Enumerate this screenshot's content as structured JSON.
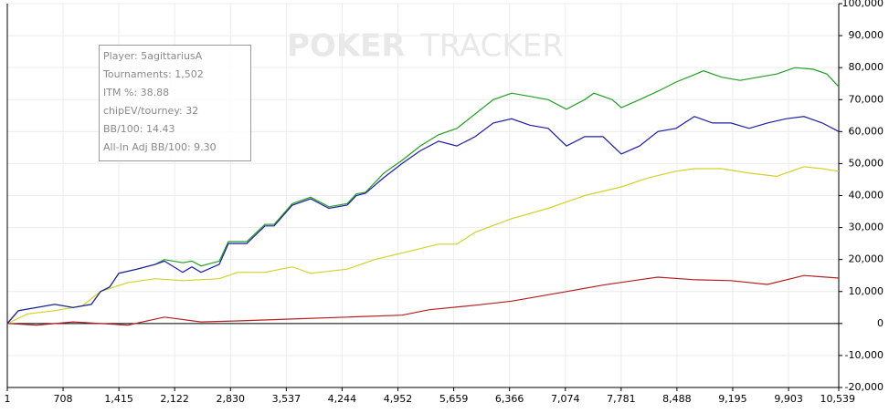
{
  "chart_data": {
    "type": "line",
    "watermark": [
      "POKER",
      "TRACKER"
    ],
    "annotations": [
      "Player: 5agittariusA",
      "Tournaments: 1,502",
      "ITM %: 38.88",
      "chipEV/tourney: 32",
      "BB/100: 14.43",
      "All-In Adj BB/100: 9.30"
    ],
    "xlim": [
      1,
      10539
    ],
    "ylim": [
      -20000,
      100000
    ],
    "xticks": [
      1,
      708,
      {
        "value": 1415,
        "label": "1,415"
      },
      {
        "value": 2122,
        "label": "2,122"
      },
      {
        "value": 2830,
        "label": "2,830"
      },
      {
        "value": 3537,
        "label": "3,537"
      },
      {
        "value": 4244,
        "label": "4,244"
      },
      {
        "value": 4952,
        "label": "4,952"
      },
      {
        "value": 5659,
        "label": "5,659"
      },
      {
        "value": 6366,
        "label": "6,366"
      },
      {
        "value": 7074,
        "label": "7,074"
      },
      {
        "value": 7781,
        "label": "7,781"
      },
      {
        "value": 8488,
        "label": "8,488"
      },
      {
        "value": 9195,
        "label": "9,195"
      },
      {
        "value": 9903,
        "label": "9,903"
      },
      {
        "value": 10539,
        "label": "10,539"
      }
    ],
    "yticks": [
      {
        "value": 100000,
        "label": "100,000"
      },
      {
        "value": 90000,
        "label": "90,000"
      },
      {
        "value": 80000,
        "label": "80,000"
      },
      {
        "value": 70000,
        "label": "70,000"
      },
      {
        "value": 60000,
        "label": "60,000"
      },
      {
        "value": 50000,
        "label": "50,000"
      },
      {
        "value": 40000,
        "label": "40,000"
      },
      {
        "value": 30000,
        "label": "30,000"
      },
      {
        "value": 20000,
        "label": "20,000"
      },
      {
        "value": 10000,
        "label": "10,000"
      },
      0,
      {
        "value": -10000,
        "label": "-10,000"
      },
      {
        "value": -20000,
        "label": "-20,000"
      }
    ],
    "grid": true,
    "series": [
      {
        "color": "#d4d12a",
        "x": [
          1,
          256,
          603,
          951,
          1182,
          1530,
          1877,
          2224,
          2688,
          2919,
          3267,
          3614,
          3846,
          4309,
          4656,
          5004,
          5467,
          5698,
          5930,
          6393,
          6856,
          7319,
          7783,
          8130,
          8477,
          8709,
          9056,
          9403,
          9751,
          10098,
          10330,
          10539
        ],
        "values": [
          0,
          3000,
          4000,
          5500,
          10000,
          12800,
          14000,
          13400,
          14000,
          16000,
          16000,
          17700,
          15700,
          17000,
          20000,
          22000,
          24800,
          24800,
          28500,
          32800,
          36000,
          40000,
          42700,
          45600,
          47600,
          48400,
          48400,
          47000,
          46000,
          49000,
          48400,
          47600
        ]
      },
      {
        "color": "#b52020",
        "x": [
          1,
          372,
          835,
          1530,
          1993,
          2456,
          2919,
          3614,
          4309,
          5004,
          5351,
          5930,
          6393,
          7088,
          7551,
          8014,
          8246,
          8709,
          9172,
          9635,
          10098,
          10539
        ],
        "values": [
          0,
          -500,
          500,
          -500,
          2000,
          500,
          800,
          1400,
          2000,
          2600,
          4300,
          5700,
          7000,
          10000,
          12000,
          13700,
          14500,
          13700,
          13400,
          12200,
          15000,
          14200
        ]
      },
      {
        "color": "#22a022",
        "x": [
          1,
          140,
          372,
          603,
          835,
          1066,
          1182,
          1298,
          1414,
          1645,
          1877,
          1993,
          2224,
          2340,
          2456,
          2688,
          2803,
          3035,
          3267,
          3382,
          3614,
          3846,
          4077,
          4309,
          4425,
          4541,
          4772,
          5004,
          5235,
          5467,
          5698,
          5930,
          6161,
          6393,
          6624,
          6856,
          7088,
          7319,
          7435,
          7667,
          7783,
          8014,
          8246,
          8477,
          8709,
          8825,
          9056,
          9288,
          9519,
          9751,
          9983,
          10214,
          10388,
          10539
        ],
        "values": [
          0,
          4000,
          5000,
          6000,
          5000,
          6000,
          10000,
          11400,
          15700,
          17000,
          18500,
          20000,
          19000,
          19500,
          18000,
          19500,
          25600,
          25600,
          31000,
          31000,
          37500,
          39500,
          36500,
          37500,
          40500,
          41000,
          47000,
          51000,
          55500,
          59000,
          61000,
          65500,
          70000,
          72000,
          71000,
          70000,
          67000,
          70000,
          72000,
          70000,
          67500,
          70000,
          72600,
          75500,
          77800,
          79000,
          77000,
          76000,
          77000,
          78000,
          80000,
          79500,
          78000,
          74000
        ]
      },
      {
        "color": "#1c1ca8",
        "x": [
          1,
          140,
          372,
          603,
          835,
          1066,
          1182,
          1298,
          1414,
          1645,
          1877,
          1993,
          2224,
          2340,
          2456,
          2688,
          2803,
          3035,
          3267,
          3382,
          3614,
          3846,
          4077,
          4309,
          4425,
          4541,
          4772,
          5004,
          5235,
          5467,
          5698,
          5930,
          6161,
          6393,
          6624,
          6856,
          7088,
          7319,
          7551,
          7783,
          8014,
          8246,
          8477,
          8709,
          8940,
          9172,
          9403,
          9635,
          9867,
          10098,
          10330,
          10539
        ],
        "values": [
          0,
          4000,
          5000,
          6000,
          5000,
          6000,
          10000,
          11400,
          15700,
          17000,
          18500,
          19500,
          16000,
          17700,
          16000,
          18500,
          25000,
          25000,
          30500,
          30500,
          37000,
          39000,
          36000,
          37000,
          40000,
          40700,
          45600,
          50000,
          54000,
          57000,
          55500,
          58400,
          62700,
          64000,
          62000,
          61000,
          55500,
          58400,
          58400,
          53000,
          55500,
          60000,
          61000,
          64700,
          62700,
          62700,
          61000,
          62700,
          64000,
          64700,
          62700,
          60000
        ]
      }
    ]
  }
}
